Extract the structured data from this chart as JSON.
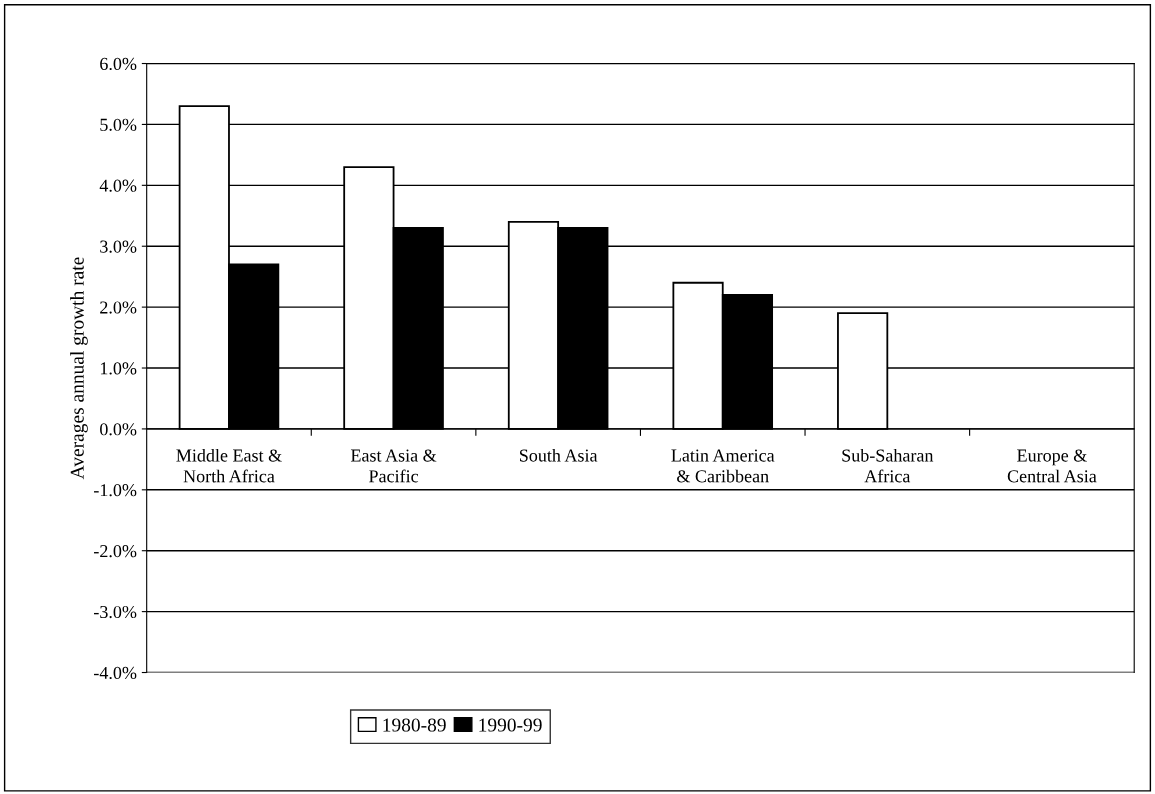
{
  "chart_data": {
    "type": "bar",
    "ylabel": "Averages annual growth rate",
    "categories": [
      "Middle East &\nNorth Africa",
      "East Asia &\nPacific",
      "South Asia",
      "Latin America\n& Caribbean",
      "Sub-Saharan\nAfrica",
      "Europe &\nCentral Asia"
    ],
    "series": [
      {
        "name": "1980-89",
        "color": "#ffffff",
        "values": [
          5.3,
          4.3,
          3.4,
          2.4,
          1.9,
          null
        ]
      },
      {
        "name": "1990-99",
        "color": "#000000",
        "values": [
          2.7,
          3.3,
          3.3,
          2.2,
          null,
          null
        ]
      }
    ],
    "ylim": [
      -4,
      6
    ],
    "yticks": [
      {
        "value": -4,
        "label": "-4.0%"
      },
      {
        "value": -3,
        "label": "-3.0%"
      },
      {
        "value": -2,
        "label": "-2.0%"
      },
      {
        "value": -1,
        "label": "-1.0%"
      },
      {
        "value": 0,
        "label": "0.0%"
      },
      {
        "value": 1,
        "label": "1.0%"
      },
      {
        "value": 2,
        "label": "2.0%"
      },
      {
        "value": 3,
        "label": "3.0%"
      },
      {
        "value": 4,
        "label": "4.0%"
      },
      {
        "value": 5,
        "label": "5.0%"
      },
      {
        "value": 6,
        "label": "6.0%"
      }
    ],
    "grid": "y",
    "legend": "bottom"
  }
}
